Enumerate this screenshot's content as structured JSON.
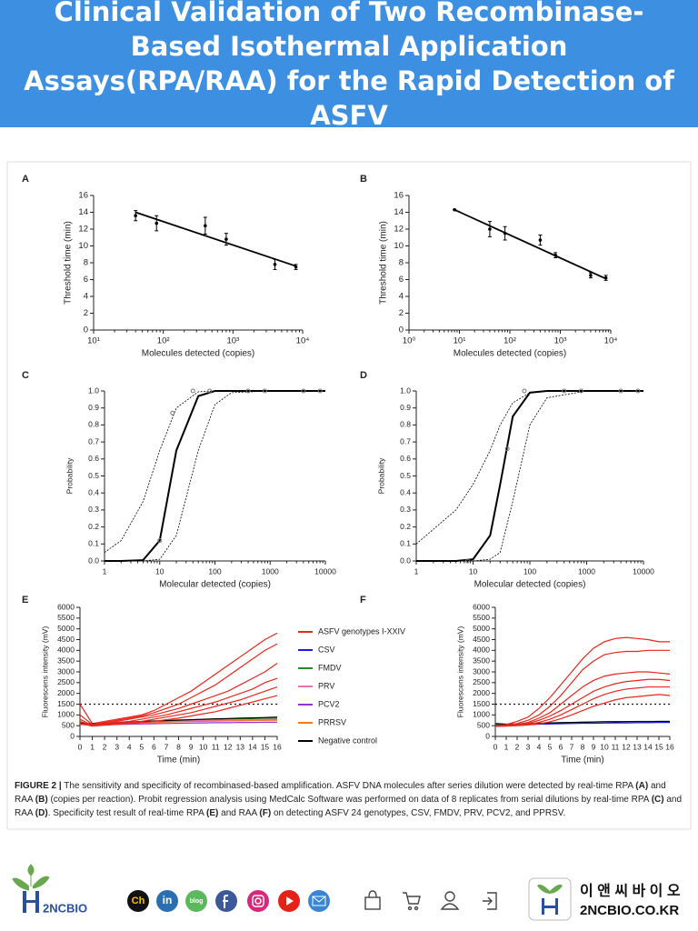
{
  "header": {
    "title": "Clinical Validation of Two Recombinase-Based Isothermal Application Assays(RPA/RAA) for the Rapid Detection of ASFV"
  },
  "chart_data": [
    {
      "type": "scatter",
      "label": "A",
      "x_label": "Molecules detected (copies)",
      "y_label": "Threshold time (min)",
      "log_x": true,
      "xlim": [
        10,
        10000
      ],
      "xticks": [
        {
          "value": 10,
          "label": "10¹"
        },
        {
          "value": 100,
          "label": "10²"
        },
        {
          "value": 1000,
          "label": "10³"
        },
        {
          "value": 10000,
          "label": "10⁴"
        }
      ],
      "ylim": [
        0,
        16
      ],
      "yticks": [
        0,
        2,
        4,
        6,
        8,
        10,
        12,
        14,
        16
      ],
      "series": [
        {
          "color": "#000000",
          "x": [
            40,
            80,
            400,
            800,
            4000,
            8000
          ],
          "y": [
            13.6,
            12.7,
            12.4,
            10.8,
            7.8,
            7.5
          ],
          "errors": [
            0.6,
            0.9,
            1.0,
            0.7,
            0.6,
            0.3
          ]
        }
      ],
      "fit": {
        "x": [
          40,
          8000
        ],
        "y": [
          14.0,
          7.6
        ]
      }
    },
    {
      "type": "scatter",
      "label": "B",
      "x_label": "Molecules detected (copies)",
      "y_label": "Threshold time (min)",
      "log_x": true,
      "xlim": [
        1,
        10000
      ],
      "xticks": [
        {
          "value": 1,
          "label": "10⁰"
        },
        {
          "value": 10,
          "label": "10¹"
        },
        {
          "value": 100,
          "label": "10²"
        },
        {
          "value": 1000,
          "label": "10³"
        },
        {
          "value": 10000,
          "label": "10⁴"
        }
      ],
      "ylim": [
        0,
        16
      ],
      "yticks": [
        0,
        2,
        4,
        6,
        8,
        10,
        12,
        14,
        16
      ],
      "series": [
        {
          "color": "#000000",
          "x": [
            8,
            40,
            80,
            400,
            800,
            4000,
            8000
          ],
          "y": [
            14.3,
            12.0,
            11.5,
            10.7,
            8.9,
            6.5,
            6.2
          ],
          "errors": [
            0,
            0.9,
            0.8,
            0.6,
            0.3,
            0.3,
            0.3
          ]
        }
      ],
      "fit": {
        "x": [
          8,
          8000
        ],
        "y": [
          14.3,
          6.1
        ]
      }
    },
    {
      "type": "line",
      "label": "C",
      "x_label": "Molecular detected (copies)",
      "y_label": "Probability",
      "log_x": true,
      "xlim": [
        1,
        10000
      ],
      "xticks": [
        1,
        10,
        100,
        1000,
        10000
      ],
      "ylim": [
        0,
        1
      ],
      "yticks": [
        {
          "value": 0,
          "label": "0.0"
        },
        0.1,
        0.2,
        0.3,
        0.4,
        0.5,
        0.6,
        0.7,
        0.8,
        0.9,
        {
          "value": 1,
          "label": "1.0"
        }
      ],
      "x": [
        1,
        2,
        5,
        10,
        20,
        50,
        100,
        200,
        1000,
        10000
      ],
      "series": [
        {
          "color": "#000000",
          "width": 2,
          "values": [
            0,
            0,
            0.005,
            0.12,
            0.65,
            0.97,
            1,
            1,
            1,
            1
          ]
        },
        {
          "color": "#000000",
          "dashed": true,
          "values": [
            0.05,
            0.12,
            0.35,
            0.65,
            0.9,
            0.995,
            1,
            1,
            1,
            1
          ]
        },
        {
          "color": "#000000",
          "dashed": true,
          "values": [
            0,
            0,
            0,
            0.01,
            0.15,
            0.65,
            0.92,
            0.99,
            1,
            1
          ]
        }
      ],
      "points": {
        "x": [
          10,
          17,
          40,
          80,
          400,
          800,
          4000,
          8000
        ],
        "y": [
          0.12,
          0.87,
          1,
          1,
          1,
          1,
          1,
          1
        ]
      }
    },
    {
      "type": "line",
      "label": "D",
      "x_label": "Molecular detected (copies)",
      "y_label": "Probability",
      "log_x": true,
      "xlim": [
        1,
        10000
      ],
      "xticks": [
        1,
        10,
        100,
        1000,
        10000
      ],
      "ylim": [
        0,
        1
      ],
      "yticks": [
        {
          "value": 0,
          "label": "0.0"
        },
        0.1,
        0.2,
        0.3,
        0.4,
        0.5,
        0.6,
        0.7,
        0.8,
        0.9,
        {
          "value": 1,
          "label": "1.0"
        }
      ],
      "x": [
        1,
        5,
        10,
        20,
        30,
        50,
        100,
        200,
        1000,
        10000
      ],
      "series": [
        {
          "color": "#000000",
          "width": 2,
          "values": [
            0,
            0,
            0.01,
            0.15,
            0.45,
            0.85,
            0.99,
            1,
            1,
            1
          ]
        },
        {
          "color": "#000000",
          "dashed": true,
          "values": [
            0.1,
            0.3,
            0.45,
            0.65,
            0.8,
            0.93,
            0.99,
            1,
            1,
            1
          ]
        },
        {
          "color": "#000000",
          "dashed": true,
          "values": [
            0,
            0,
            0,
            0.01,
            0.05,
            0.35,
            0.8,
            0.96,
            1,
            1
          ]
        }
      ],
      "points": {
        "x": [
          8,
          40,
          80,
          400,
          800,
          4000,
          8000
        ],
        "y": [
          0,
          0.66,
          1,
          1,
          1,
          1,
          1
        ]
      }
    },
    {
      "type": "line",
      "label": "E",
      "x_label": "Time (min)",
      "y_label": "Fluorescens intensity (mV)",
      "legend": "right",
      "threshold": 1500,
      "xlim": [
        0,
        16
      ],
      "xticks": [
        0,
        1,
        2,
        3,
        4,
        5,
        6,
        7,
        8,
        9,
        10,
        11,
        12,
        13,
        14,
        15,
        16
      ],
      "ylim": [
        0,
        6000
      ],
      "yticks": [
        0,
        500,
        1000,
        1500,
        2000,
        2500,
        3000,
        3500,
        4000,
        4500,
        5000,
        5500,
        6000
      ],
      "x": [
        0,
        1,
        2,
        3,
        4,
        5,
        6,
        7,
        8,
        9,
        10,
        11,
        12,
        13,
        14,
        15,
        16
      ],
      "series": [
        {
          "name": "ASFV genotypes I-XXIV",
          "color": "#e8271f",
          "values": [
            1500,
            600,
            700,
            800,
            900,
            1000,
            1200,
            1500,
            1800,
            2100,
            2500,
            2900,
            3300,
            3700,
            4100,
            4500,
            4800
          ]
        },
        {
          "name": "CSV",
          "color": "#1a1ae6",
          "values": [
            600,
            560,
            580,
            600,
            620,
            640,
            660,
            680,
            700,
            700,
            720,
            730,
            740,
            750,
            760,
            760,
            770
          ]
        },
        {
          "name": "FMDV",
          "color": "#2a8a2a",
          "values": [
            620,
            580,
            600,
            620,
            650,
            680,
            700,
            720,
            740,
            760,
            780,
            800,
            810,
            820,
            830,
            840,
            850
          ]
        },
        {
          "name": "PRV",
          "color": "#f06eb4",
          "values": [
            600,
            560,
            580,
            600,
            620,
            640,
            660,
            680,
            700,
            720,
            740,
            750,
            760,
            770,
            780,
            790,
            800
          ]
        },
        {
          "name": "PCV2",
          "color": "#9b30d9",
          "values": [
            560,
            520,
            540,
            560,
            570,
            580,
            590,
            600,
            610,
            620,
            630,
            640,
            640,
            650,
            650,
            660,
            660
          ]
        },
        {
          "name": "PRRSV",
          "color": "#f07b22",
          "values": [
            580,
            540,
            560,
            580,
            600,
            620,
            640,
            660,
            680,
            690,
            700,
            710,
            720,
            730,
            740,
            750,
            750
          ]
        },
        {
          "name": "Negative control",
          "color": "#000000",
          "values": [
            620,
            580,
            610,
            640,
            670,
            700,
            720,
            740,
            760,
            780,
            800,
            820,
            830,
            850,
            860,
            880,
            900
          ]
        },
        {
          "color": "#e8271f",
          "values": [
            1000,
            550,
            650,
            750,
            850,
            950,
            1100,
            1300,
            1500,
            1800,
            2100,
            2400,
            2800,
            3200,
            3600,
            4000,
            4300
          ]
        },
        {
          "color": "#e8271f",
          "values": [
            800,
            500,
            600,
            700,
            800,
            900,
            1000,
            1150,
            1300,
            1500,
            1700,
            1900,
            2100,
            2400,
            2700,
            3000,
            3400
          ]
        },
        {
          "color": "#e8271f",
          "values": [
            700,
            500,
            550,
            650,
            700,
            800,
            900,
            1000,
            1150,
            1300,
            1450,
            1600,
            1800,
            2000,
            2200,
            2500,
            2700
          ]
        },
        {
          "color": "#e8271f",
          "values": [
            600,
            500,
            550,
            600,
            650,
            700,
            800,
            900,
            1000,
            1100,
            1250,
            1400,
            1550,
            1700,
            1900,
            2100,
            2300
          ]
        },
        {
          "color": "#e8271f",
          "values": [
            600,
            480,
            520,
            560,
            600,
            650,
            700,
            780,
            850,
            950,
            1050,
            1150,
            1300,
            1450,
            1600,
            1750,
            1900
          ]
        }
      ]
    },
    {
      "type": "line",
      "label": "F",
      "x_label": "Time (min)",
      "y_label": "Fluorescens intensity (mV)",
      "threshold": 1500,
      "xlim": [
        0,
        16
      ],
      "xticks": [
        0,
        1,
        2,
        3,
        4,
        5,
        6,
        7,
        8,
        9,
        10,
        11,
        12,
        13,
        14,
        15,
        16
      ],
      "ylim": [
        0,
        6000
      ],
      "yticks": [
        0,
        500,
        1000,
        1500,
        2000,
        2500,
        3000,
        3500,
        4000,
        4500,
        5000,
        5500,
        6000
      ],
      "x": [
        0,
        1,
        2,
        3,
        4,
        5,
        6,
        7,
        8,
        9,
        10,
        11,
        12,
        13,
        14,
        15,
        16
      ],
      "series": [
        {
          "color": "#1a1ae6",
          "values": [
            560,
            540,
            550,
            560,
            570,
            580,
            590,
            600,
            610,
            610,
            620,
            630,
            630,
            640,
            640,
            650,
            650
          ]
        },
        {
          "color": "#2a8a2a",
          "values": [
            580,
            560,
            570,
            590,
            600,
            620,
            640,
            650,
            660,
            670,
            680,
            690,
            690,
            700,
            700,
            700,
            700
          ]
        },
        {
          "color": "#000000",
          "values": [
            600,
            570,
            580,
            600,
            610,
            630,
            640,
            650,
            660,
            670,
            680,
            680,
            690,
            690,
            690,
            700,
            700
          ]
        },
        {
          "color": "#e8271f",
          "values": [
            500,
            550,
            700,
            900,
            1300,
            1800,
            2400,
            3000,
            3600,
            4100,
            4400,
            4550,
            4600,
            4550,
            4500,
            4400,
            4400
          ]
        },
        {
          "color": "#e8271f",
          "values": [
            500,
            520,
            600,
            750,
            1000,
            1400,
            1900,
            2500,
            3100,
            3500,
            3800,
            3900,
            3950,
            3950,
            4000,
            4000,
            4000
          ]
        },
        {
          "color": "#e8271f",
          "values": [
            480,
            500,
            560,
            650,
            850,
            1100,
            1500,
            1900,
            2300,
            2600,
            2800,
            2900,
            2950,
            3000,
            3000,
            2950,
            2900
          ]
        },
        {
          "color": "#e8271f",
          "values": [
            480,
            500,
            540,
            600,
            750,
            950,
            1200,
            1500,
            1800,
            2100,
            2300,
            2450,
            2550,
            2600,
            2650,
            2650,
            2600
          ]
        },
        {
          "color": "#e8271f",
          "values": [
            470,
            490,
            520,
            560,
            650,
            800,
            1000,
            1250,
            1500,
            1750,
            1950,
            2100,
            2200,
            2250,
            2300,
            2300,
            2300
          ]
        },
        {
          "color": "#e8271f",
          "values": [
            470,
            480,
            500,
            530,
            580,
            680,
            820,
            1000,
            1200,
            1400,
            1550,
            1700,
            1800,
            1850,
            1900,
            1950,
            1900
          ]
        }
      ]
    }
  ],
  "caption": [
    {
      "text": "FIGURE 2 |",
      "bold": true
    },
    {
      "text": " The sensitivity and specificity of recombinased-based amplification. ASFV DNA molecules after series dilution were detected by real-time RPA "
    },
    {
      "text": "(A)",
      "bold": true
    },
    {
      "text": " and RAA "
    },
    {
      "text": "(B)",
      "bold": true
    },
    {
      "text": " (copies per reaction). Probit regression analysis using MedCalc Software was performed on data of 8 replicates from serial dilutions by real-time RPA "
    },
    {
      "text": "(C)",
      "bold": true
    },
    {
      "text": " and RAA "
    },
    {
      "text": "(D)",
      "bold": true
    },
    {
      "text": ". Specificity test result of real-time RPA "
    },
    {
      "text": "(E)",
      "bold": true
    },
    {
      "text": " and RAA "
    },
    {
      "text": "(F)",
      "bold": true
    },
    {
      "text": " on detecting ASFV 24 genotypes, CSV, FMDV, PRV, PCV2, and PPRSV."
    }
  ],
  "footer": {
    "logo_text": "2NCBIO",
    "social": [
      "Ch",
      "in",
      "blog"
    ],
    "brand_korean": "이 앤 씨 바 이 오",
    "brand_url": "2NCBIO.CO.KR"
  }
}
